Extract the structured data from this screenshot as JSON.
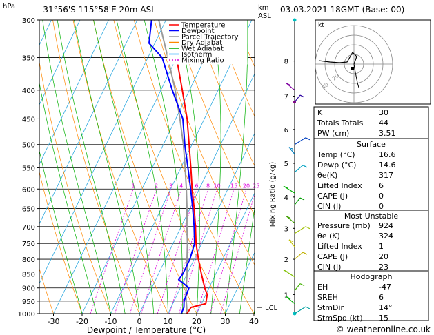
{
  "header": {
    "hpa_unit": "hPa",
    "location": "-31°56'S  115°58'E  20m  ASL",
    "km_label": "km",
    "asl_label": "ASL",
    "datetime": "03.03.2021  18GMT  (Base: 00)"
  },
  "chart_data": {
    "type": "skew-t",
    "xlabel": "Dewpoint / Temperature (°C)",
    "ylabel_right": "Mixing Ratio (g/kg)",
    "x_ticks": [
      "-30",
      "-20",
      "-10",
      "0",
      "10",
      "20",
      "30",
      "40"
    ],
    "pressure_ticks": [
      "300",
      "350",
      "400",
      "450",
      "500",
      "550",
      "600",
      "650",
      "700",
      "750",
      "800",
      "850",
      "900",
      "950",
      "1000"
    ],
    "height_ticks": [
      {
        "p": 925,
        "km": "1"
      },
      {
        "p": 800,
        "km": "2"
      },
      {
        "p": 705,
        "km": "3"
      },
      {
        "p": 620,
        "km": "4"
      },
      {
        "p": 540,
        "km": "5"
      },
      {
        "p": 470,
        "km": "6"
      },
      {
        "p": 410,
        "km": "7"
      },
      {
        "p": 355,
        "km": "8"
      }
    ],
    "lcl_label": "LCL",
    "lcl_p": 975,
    "mixing_ratio_labels": [
      "1",
      "2",
      "3",
      "4",
      "6",
      "8",
      "10",
      "15",
      "20",
      "25"
    ],
    "legend": [
      {
        "name": "Temperature",
        "color": "#ff0000",
        "dash": ""
      },
      {
        "name": "Dewpoint",
        "color": "#0000ff",
        "dash": ""
      },
      {
        "name": "Parcel Trajectory",
        "color": "#999999",
        "dash": ""
      },
      {
        "name": "Dry Adiabat",
        "color": "#ff8800",
        "dash": ""
      },
      {
        "name": "Wet Adiabat",
        "color": "#00aa00",
        "dash": ""
      },
      {
        "name": "Isotherm",
        "color": "#0099ff",
        "dash": ""
      },
      {
        "name": "Mixing Ratio",
        "color": "#dd00dd",
        "dash": "2 2"
      }
    ],
    "temperature": [
      {
        "p": 1000,
        "t": 16.6
      },
      {
        "p": 975,
        "t": 17.0
      },
      {
        "p": 960,
        "t": 21.5
      },
      {
        "p": 925,
        "t": 20.5
      },
      {
        "p": 900,
        "t": 18.5
      },
      {
        "p": 850,
        "t": 15.0
      },
      {
        "p": 800,
        "t": 11.5
      },
      {
        "p": 750,
        "t": 8.0
      },
      {
        "p": 700,
        "t": 5.0
      },
      {
        "p": 650,
        "t": 1.5
      },
      {
        "p": 600,
        "t": -2.5
      },
      {
        "p": 550,
        "t": -6.5
      },
      {
        "p": 500,
        "t": -11.0
      },
      {
        "p": 450,
        "t": -16.0
      },
      {
        "p": 400,
        "t": -22.5
      },
      {
        "p": 350,
        "t": -30.0
      },
      {
        "p": 300,
        "t": -39.0
      }
    ],
    "dewpoint": [
      {
        "p": 1000,
        "t": 14.6
      },
      {
        "p": 975,
        "t": 14.5
      },
      {
        "p": 950,
        "t": 13.5
      },
      {
        "p": 900,
        "t": 13.0
      },
      {
        "p": 870,
        "t": 8.0
      },
      {
        "p": 850,
        "t": 8.5
      },
      {
        "p": 800,
        "t": 8.5
      },
      {
        "p": 750,
        "t": 7.5
      },
      {
        "p": 700,
        "t": 4.5
      },
      {
        "p": 650,
        "t": 1.0
      },
      {
        "p": 600,
        "t": -3.0
      },
      {
        "p": 550,
        "t": -7.5
      },
      {
        "p": 500,
        "t": -12.5
      },
      {
        "p": 450,
        "t": -17.5
      },
      {
        "p": 400,
        "t": -26.0
      },
      {
        "p": 350,
        "t": -35.0
      },
      {
        "p": 330,
        "t": -42.0
      },
      {
        "p": 300,
        "t": -45.0
      }
    ],
    "parcel": [
      {
        "p": 1000,
        "t": 16.6
      },
      {
        "p": 975,
        "t": 15.5
      },
      {
        "p": 925,
        "t": 13.0
      },
      {
        "p": 850,
        "t": 10.0
      },
      {
        "p": 800,
        "t": 7.5
      },
      {
        "p": 750,
        "t": 5.0
      },
      {
        "p": 700,
        "t": 2.0
      },
      {
        "p": 650,
        "t": -1.0
      },
      {
        "p": 600,
        "t": -4.5
      },
      {
        "p": 550,
        "t": -8.5
      },
      {
        "p": 500,
        "t": -13.0
      },
      {
        "p": 450,
        "t": -18.5
      },
      {
        "p": 400,
        "t": -25.0
      },
      {
        "p": 350,
        "t": -33.0
      },
      {
        "p": 300,
        "t": -42.5
      }
    ]
  },
  "hodograph": {
    "label": "kt",
    "ring_labels": [
      "20",
      "40"
    ]
  },
  "indices": [
    {
      "label": "K",
      "value": "30"
    },
    {
      "label": "Totals Totals",
      "value": "44"
    },
    {
      "label": "PW (cm)",
      "value": "3.51"
    }
  ],
  "surface": {
    "title": "Surface",
    "rows": [
      {
        "label": "Temp (°C)",
        "value": "16.6"
      },
      {
        "label": "Dewp (°C)",
        "value": "14.6"
      },
      {
        "label": "θe(K)",
        "value": "317"
      },
      {
        "label": "Lifted Index",
        "value": "6"
      },
      {
        "label": "CAPE (J)",
        "value": "0"
      },
      {
        "label": "CIN (J)",
        "value": "0"
      }
    ]
  },
  "most_unstable": {
    "title": "Most Unstable",
    "rows": [
      {
        "label": "Pressure (mb)",
        "value": "924"
      },
      {
        "label": "θe (K)",
        "value": "324"
      },
      {
        "label": "Lifted Index",
        "value": "1"
      },
      {
        "label": "CAPE (J)",
        "value": "20"
      },
      {
        "label": "CIN (J)",
        "value": "23"
      }
    ]
  },
  "hodograph_table": {
    "title": "Hodograph",
    "rows": [
      {
        "label": "EH",
        "value": "-47"
      },
      {
        "label": "SREH",
        "value": "6"
      },
      {
        "label": "StmDir",
        "value": "14°"
      },
      {
        "label": "StmSpd (kt)",
        "value": "15"
      }
    ]
  },
  "footer": {
    "copyright": "© weatheronline.co.uk"
  }
}
